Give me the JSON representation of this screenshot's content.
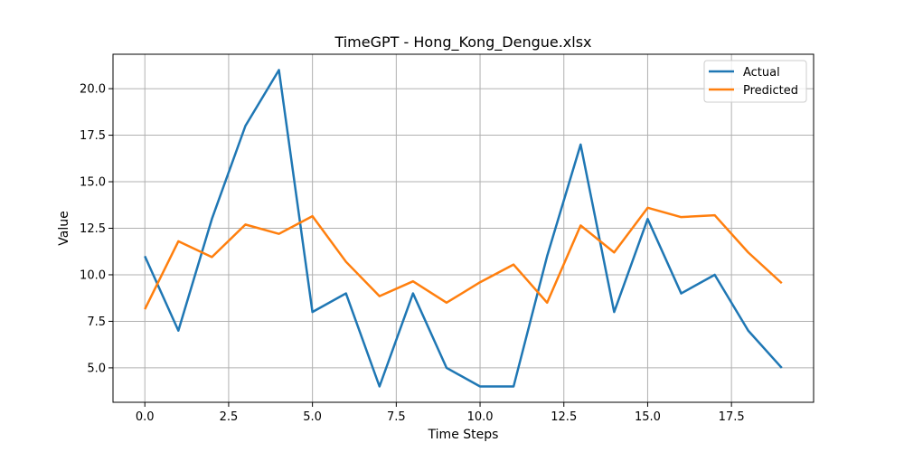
{
  "chart_data": {
    "type": "line",
    "title": "TimeGPT - Hong_Kong_Dengue.xlsx",
    "xlabel": "Time Steps",
    "ylabel": "Value",
    "x": [
      0,
      1,
      2,
      3,
      4,
      5,
      6,
      7,
      8,
      9,
      10,
      11,
      12,
      13,
      14,
      15,
      16,
      17,
      18,
      19
    ],
    "series": [
      {
        "name": "Actual",
        "color": "#1f77b4",
        "values": [
          11,
          7,
          13,
          18,
          21,
          8,
          9,
          4,
          9,
          5,
          4,
          4,
          11,
          17,
          8,
          13,
          9,
          10,
          7,
          5
        ]
      },
      {
        "name": "Predicted",
        "color": "#ff7f0e",
        "values": [
          8.15,
          11.8,
          10.95,
          12.7,
          12.2,
          13.15,
          10.7,
          8.85,
          9.65,
          8.5,
          9.6,
          10.55,
          8.5,
          12.65,
          11.2,
          13.6,
          13.1,
          13.2,
          11.2,
          9.55
        ]
      }
    ],
    "xlim": [
      -0.95,
      19.95
    ],
    "ylim": [
      3.15,
      21.85
    ],
    "xticks": [
      0.0,
      2.5,
      5.0,
      7.5,
      10.0,
      12.5,
      15.0,
      17.5
    ],
    "xtick_labels": [
      "0.0",
      "2.5",
      "5.0",
      "7.5",
      "10.0",
      "12.5",
      "15.0",
      "17.5"
    ],
    "yticks": [
      5.0,
      7.5,
      10.0,
      12.5,
      15.0,
      17.5,
      20.0
    ],
    "ytick_labels": [
      "5.0",
      "7.5",
      "10.0",
      "12.5",
      "15.0",
      "17.5",
      "20.0"
    ],
    "grid": true,
    "legend_position": "top-right"
  }
}
